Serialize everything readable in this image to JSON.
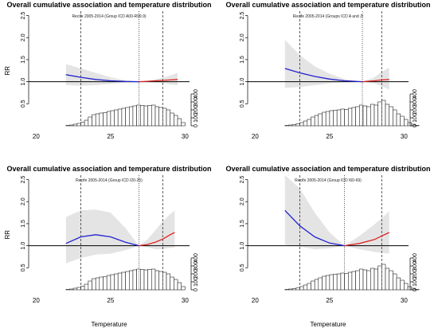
{
  "chart_data": [
    {
      "type": "line",
      "title": "Overall cumulative association and temperature distribution",
      "subtitle": "Recife 2005-2014 (Group ICD A00-R99.9)",
      "ylabel": "RR",
      "xlabel": "",
      "xlim": [
        19.5,
        30.3
      ],
      "x_ticks": [
        20,
        25,
        30
      ],
      "ylim": [
        0,
        2.6
      ],
      "y_ticks": [
        0.5,
        1.0,
        1.5,
        2.0,
        2.5
      ],
      "hist_axis_ticks": [
        0,
        100,
        200,
        300,
        400
      ],
      "reference_lines": {
        "dashed": [
          23.0,
          28.5
        ],
        "dotted": [
          26.9
        ]
      },
      "series": [
        {
          "x": [
            22,
            23,
            24,
            25,
            26,
            26.9
          ],
          "values": [
            1.16,
            1.1,
            1.05,
            1.02,
            1.005,
            1.0
          ],
          "color": "#2222cc"
        },
        {
          "x": [
            26.9,
            27.5,
            28,
            28.5,
            29,
            29.5
          ],
          "values": [
            1.0,
            1.01,
            1.02,
            1.03,
            1.04,
            1.05
          ],
          "color": "#dd2222"
        }
      ],
      "ci_band": {
        "x": [
          22,
          23,
          24,
          25,
          26,
          26.9,
          27.5,
          28,
          28.5,
          29,
          29.5
        ],
        "upper": [
          1.4,
          1.3,
          1.2,
          1.1,
          1.03,
          1.0,
          1.02,
          1.05,
          1.09,
          1.14,
          1.2
        ],
        "lower": [
          0.92,
          0.91,
          0.92,
          0.95,
          0.98,
          1.0,
          0.99,
          0.98,
          0.97,
          0.94,
          0.92
        ]
      },
      "histogram": {
        "start": 22.0,
        "width": 0.25,
        "counts": [
          5,
          10,
          20,
          30,
          45,
          70,
          110,
          140,
          150,
          160,
          165,
          180,
          190,
          200,
          210,
          220,
          230,
          240,
          250,
          260,
          255,
          250,
          255,
          260,
          240,
          230,
          220,
          200,
          160,
          130,
          90,
          40
        ]
      }
    },
    {
      "type": "line",
      "title": "Overall cumulative association and temperature distribution",
      "subtitle": "Recife 2005-2014 (Groups ICD A and J)",
      "ylabel": "",
      "xlabel": "",
      "xlim": [
        19.5,
        30.3
      ],
      "x_ticks": [
        20,
        25,
        30
      ],
      "ylim": [
        0,
        2.6
      ],
      "y_ticks": [
        0.5,
        1.0,
        1.5,
        2.0,
        2.5
      ],
      "hist_axis_ticks": [
        0,
        100,
        200,
        300,
        400
      ],
      "reference_lines": {
        "dashed": [
          23.0,
          28.5
        ],
        "dotted": [
          27.2
        ]
      },
      "series": [
        {
          "x": [
            22,
            23,
            24,
            25,
            26,
            27.2
          ],
          "values": [
            1.3,
            1.2,
            1.12,
            1.06,
            1.02,
            1.0
          ],
          "color": "#2222cc"
        },
        {
          "x": [
            27.2,
            28,
            28.5,
            29
          ],
          "values": [
            1.0,
            1.02,
            1.04,
            1.05
          ],
          "color": "#dd2222"
        }
      ],
      "ci_band": {
        "x": [
          22,
          23,
          24,
          25,
          26,
          27.2,
          28,
          28.5,
          29
        ],
        "upper": [
          1.95,
          1.6,
          1.35,
          1.18,
          1.06,
          1.0,
          1.1,
          1.22,
          1.32
        ],
        "lower": [
          0.86,
          0.88,
          0.92,
          0.96,
          0.99,
          1.0,
          0.96,
          0.9,
          0.82
        ]
      },
      "histogram": {
        "start": 22.0,
        "width": 0.25,
        "counts": [
          5,
          10,
          15,
          25,
          40,
          60,
          80,
          110,
          130,
          150,
          170,
          180,
          190,
          195,
          200,
          210,
          205,
          220,
          230,
          240,
          260,
          250,
          240,
          270,
          260,
          300,
          320,
          270,
          240,
          200,
          150,
          120,
          80,
          40,
          20,
          5
        ]
      }
    },
    {
      "type": "line",
      "title": "Overall cumulative association and temperature distribution",
      "subtitle": "Recife 2005-2014 (Group ICD I20-25)",
      "ylabel": "RR",
      "xlabel": "Temperature",
      "xlim": [
        19.5,
        30.3
      ],
      "x_ticks": [
        20,
        25,
        30
      ],
      "ylim": [
        0,
        2.6
      ],
      "y_ticks": [
        0.5,
        1.0,
        1.5,
        2.0,
        2.5
      ],
      "hist_axis_ticks": [
        0,
        100,
        200,
        300,
        400
      ],
      "reference_lines": {
        "dashed": [
          23.0,
          28.5
        ],
        "dotted": [
          26.9
        ]
      },
      "series": [
        {
          "x": [
            22,
            23,
            24,
            25,
            26,
            26.9
          ],
          "values": [
            1.05,
            1.2,
            1.25,
            1.2,
            1.08,
            1.0
          ],
          "color": "#2222cc"
        },
        {
          "x": [
            26.9,
            27.5,
            28,
            28.5,
            29,
            29.3
          ],
          "values": [
            1.0,
            1.03,
            1.08,
            1.15,
            1.25,
            1.3
          ],
          "color": "#dd2222"
        }
      ],
      "ci_band": {
        "x": [
          22,
          23,
          24,
          25,
          26,
          26.9,
          27.5,
          28,
          28.5,
          29,
          29.3
        ],
        "upper": [
          1.65,
          1.8,
          1.82,
          1.75,
          1.4,
          1.0,
          1.15,
          1.35,
          1.55,
          1.72,
          1.8
        ],
        "lower": [
          0.6,
          0.72,
          0.8,
          0.82,
          0.9,
          1.0,
          0.96,
          0.92,
          0.92,
          0.95,
          0.96
        ]
      },
      "histogram": {
        "start": 22.0,
        "width": 0.25,
        "counts": [
          5,
          10,
          20,
          30,
          45,
          70,
          110,
          140,
          150,
          160,
          165,
          180,
          190,
          200,
          210,
          220,
          230,
          240,
          250,
          260,
          255,
          250,
          255,
          260,
          240,
          230,
          220,
          200,
          160,
          130,
          90,
          40
        ]
      }
    },
    {
      "type": "line",
      "title": "Overall cumulative association and temperature distribution",
      "subtitle": "Recife 2005-2014 (Group ICD I60-69)",
      "ylabel": "",
      "xlabel": "Temperature",
      "xlim": [
        19.5,
        30.3
      ],
      "x_ticks": [
        20,
        25,
        30
      ],
      "ylim": [
        0,
        2.6
      ],
      "y_ticks": [
        0.5,
        1.0,
        1.5,
        2.0,
        2.5
      ],
      "hist_axis_ticks": [
        0,
        100,
        200,
        300,
        400
      ],
      "reference_lines": {
        "dashed": [
          23.0,
          28.5
        ],
        "dotted": [
          26.0
        ]
      },
      "series": [
        {
          "x": [
            22,
            23,
            24,
            25,
            26
          ],
          "values": [
            1.8,
            1.45,
            1.2,
            1.06,
            1.0
          ],
          "color": "#2222cc"
        },
        {
          "x": [
            26,
            27,
            28,
            28.5,
            29
          ],
          "values": [
            1.0,
            1.05,
            1.14,
            1.22,
            1.3
          ],
          "color": "#dd2222"
        }
      ],
      "ci_band": {
        "x": [
          22,
          23,
          24,
          25,
          26,
          27,
          28,
          28.5,
          29
        ],
        "upper": [
          2.6,
          2.3,
          1.75,
          1.3,
          1.0,
          1.22,
          1.48,
          1.62,
          1.78
        ],
        "lower": [
          1.02,
          0.98,
          0.92,
          0.94,
          1.0,
          0.92,
          0.86,
          0.84,
          0.82
        ]
      },
      "histogram": {
        "start": 22.0,
        "width": 0.25,
        "counts": [
          5,
          10,
          15,
          25,
          40,
          60,
          80,
          110,
          130,
          150,
          170,
          180,
          190,
          195,
          200,
          210,
          205,
          220,
          230,
          240,
          260,
          250,
          240,
          270,
          260,
          300,
          320,
          270,
          240,
          200,
          150,
          120,
          80,
          40,
          20,
          5
        ]
      }
    }
  ]
}
